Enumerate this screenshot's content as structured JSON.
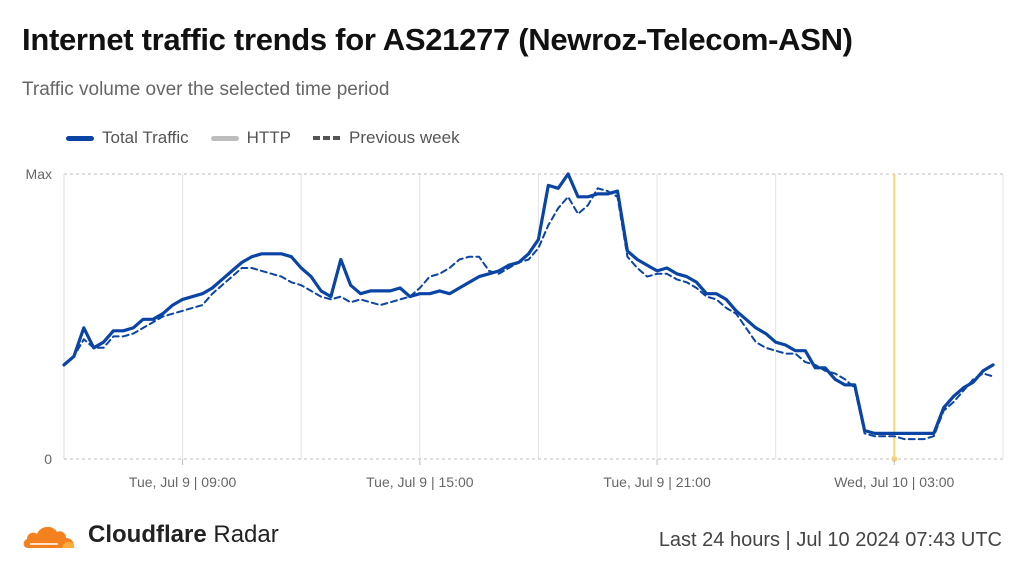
{
  "header": {
    "title": "Internet traffic trends for AS21277 (Newroz-Telecom-ASN)",
    "subtitle": "Traffic volume over the selected time period"
  },
  "legend": {
    "items": [
      {
        "label": "Total Traffic",
        "style": "solid",
        "color": "#0a44a4"
      },
      {
        "label": "HTTP",
        "style": "solid",
        "color": "#bdbdbd"
      },
      {
        "label": "Previous week",
        "style": "dashed",
        "color": "#555555"
      }
    ]
  },
  "footer": {
    "brand_bold": "Cloudflare",
    "brand_regular": "Radar",
    "meta": "Last 24 hours | Jul 10 2024 07:43 UTC",
    "logo_color": "#f48120"
  },
  "chart_data": {
    "type": "line",
    "ylim": [
      0,
      100
    ],
    "y_tick_labels": [
      "0",
      "Max"
    ],
    "x_tick_labels": [
      "Tue, Jul 9 | 09:00",
      "Tue, Jul 9 | 15:00",
      "Tue, Jul 9 | 21:00",
      "Wed, Jul 10 | 03:00"
    ],
    "x_tick_hours": [
      3,
      9,
      15,
      21
    ],
    "x_range_hours": [
      0,
      23.75
    ],
    "highlight_hour": 21,
    "highlight_color": "#f5d57a",
    "grid": true,
    "series": [
      {
        "name": "Total Traffic",
        "color": "#0a44a4",
        "dash": false,
        "points": [
          [
            0.0,
            33
          ],
          [
            0.25,
            36
          ],
          [
            0.5,
            46
          ],
          [
            0.75,
            39
          ],
          [
            1.0,
            41
          ],
          [
            1.25,
            45
          ],
          [
            1.5,
            45
          ],
          [
            1.75,
            46
          ],
          [
            2.0,
            49
          ],
          [
            2.25,
            49
          ],
          [
            2.5,
            51
          ],
          [
            2.75,
            54
          ],
          [
            3.0,
            56
          ],
          [
            3.25,
            57
          ],
          [
            3.5,
            58
          ],
          [
            3.75,
            60
          ],
          [
            4.0,
            63
          ],
          [
            4.25,
            66
          ],
          [
            4.5,
            69
          ],
          [
            4.75,
            71
          ],
          [
            5.0,
            72
          ],
          [
            5.25,
            72
          ],
          [
            5.5,
            72
          ],
          [
            5.75,
            71
          ],
          [
            6.0,
            67
          ],
          [
            6.25,
            64
          ],
          [
            6.5,
            59
          ],
          [
            6.75,
            57
          ],
          [
            7.0,
            70
          ],
          [
            7.25,
            61
          ],
          [
            7.5,
            58
          ],
          [
            7.75,
            59
          ],
          [
            8.0,
            59
          ],
          [
            8.25,
            59
          ],
          [
            8.5,
            60
          ],
          [
            8.75,
            57
          ],
          [
            9.0,
            58
          ],
          [
            9.25,
            58
          ],
          [
            9.5,
            59
          ],
          [
            9.75,
            58
          ],
          [
            10.0,
            60
          ],
          [
            10.25,
            62
          ],
          [
            10.5,
            64
          ],
          [
            10.75,
            65
          ],
          [
            11.0,
            66
          ],
          [
            11.25,
            68
          ],
          [
            11.5,
            69
          ],
          [
            11.75,
            72
          ],
          [
            12.0,
            77
          ],
          [
            12.25,
            96
          ],
          [
            12.5,
            95
          ],
          [
            12.75,
            100
          ],
          [
            13.0,
            92
          ],
          [
            13.25,
            92
          ],
          [
            13.5,
            93
          ],
          [
            13.75,
            93
          ],
          [
            14.0,
            94
          ],
          [
            14.25,
            73
          ],
          [
            14.5,
            70
          ],
          [
            14.75,
            68
          ],
          [
            15.0,
            66
          ],
          [
            15.25,
            67
          ],
          [
            15.5,
            65
          ],
          [
            15.75,
            64
          ],
          [
            16.0,
            62
          ],
          [
            16.25,
            58
          ],
          [
            16.5,
            58
          ],
          [
            16.75,
            56
          ],
          [
            17.0,
            52
          ],
          [
            17.25,
            49
          ],
          [
            17.5,
            46
          ],
          [
            17.75,
            44
          ],
          [
            18.0,
            41
          ],
          [
            18.25,
            40
          ],
          [
            18.5,
            38
          ],
          [
            18.75,
            38
          ],
          [
            19.0,
            32
          ],
          [
            19.25,
            32
          ],
          [
            19.5,
            28
          ],
          [
            19.75,
            26
          ],
          [
            20.0,
            26
          ],
          [
            20.25,
            10
          ],
          [
            20.5,
            9
          ],
          [
            20.75,
            9
          ],
          [
            21.0,
            9
          ],
          [
            21.25,
            9
          ],
          [
            21.5,
            9
          ],
          [
            21.75,
            9
          ],
          [
            22.0,
            9
          ],
          [
            22.25,
            18
          ],
          [
            22.5,
            22
          ],
          [
            22.75,
            25
          ],
          [
            23.0,
            27
          ],
          [
            23.25,
            31
          ],
          [
            23.5,
            33
          ]
        ]
      },
      {
        "name": "Previous week",
        "color": "#0a44a4",
        "dash": true,
        "points": [
          [
            0.0,
            33
          ],
          [
            0.25,
            36
          ],
          [
            0.5,
            42
          ],
          [
            0.75,
            39
          ],
          [
            1.0,
            39
          ],
          [
            1.25,
            43
          ],
          [
            1.5,
            43
          ],
          [
            1.75,
            44
          ],
          [
            2.0,
            46
          ],
          [
            2.25,
            48
          ],
          [
            2.5,
            50
          ],
          [
            2.75,
            51
          ],
          [
            3.0,
            52
          ],
          [
            3.25,
            53
          ],
          [
            3.5,
            54
          ],
          [
            3.75,
            58
          ],
          [
            4.0,
            61
          ],
          [
            4.25,
            64
          ],
          [
            4.5,
            67
          ],
          [
            4.75,
            67
          ],
          [
            5.0,
            66
          ],
          [
            5.25,
            65
          ],
          [
            5.5,
            64
          ],
          [
            5.75,
            62
          ],
          [
            6.0,
            61
          ],
          [
            6.25,
            59
          ],
          [
            6.5,
            57
          ],
          [
            6.75,
            56
          ],
          [
            7.0,
            57
          ],
          [
            7.25,
            55
          ],
          [
            7.5,
            56
          ],
          [
            7.75,
            55
          ],
          [
            8.0,
            54
          ],
          [
            8.25,
            55
          ],
          [
            8.5,
            56
          ],
          [
            8.75,
            57
          ],
          [
            9.0,
            60
          ],
          [
            9.25,
            64
          ],
          [
            9.5,
            65
          ],
          [
            9.75,
            67
          ],
          [
            10.0,
            70
          ],
          [
            10.25,
            71
          ],
          [
            10.5,
            71
          ],
          [
            10.75,
            66
          ],
          [
            11.0,
            65
          ],
          [
            11.25,
            67
          ],
          [
            11.5,
            69
          ],
          [
            11.75,
            70
          ],
          [
            12.0,
            74
          ],
          [
            12.25,
            82
          ],
          [
            12.5,
            88
          ],
          [
            12.75,
            92
          ],
          [
            13.0,
            86
          ],
          [
            13.25,
            89
          ],
          [
            13.5,
            95
          ],
          [
            13.75,
            94
          ],
          [
            14.0,
            92
          ],
          [
            14.25,
            71
          ],
          [
            14.5,
            67
          ],
          [
            14.75,
            64
          ],
          [
            15.0,
            65
          ],
          [
            15.25,
            65
          ],
          [
            15.5,
            63
          ],
          [
            15.75,
            62
          ],
          [
            16.0,
            60
          ],
          [
            16.25,
            57
          ],
          [
            16.5,
            56
          ],
          [
            16.75,
            53
          ],
          [
            17.0,
            51
          ],
          [
            17.25,
            46
          ],
          [
            17.5,
            41
          ],
          [
            17.75,
            39
          ],
          [
            18.0,
            38
          ],
          [
            18.25,
            37
          ],
          [
            18.5,
            37
          ],
          [
            18.75,
            34
          ],
          [
            19.0,
            33
          ],
          [
            19.25,
            31
          ],
          [
            19.5,
            30
          ],
          [
            19.75,
            28
          ],
          [
            20.0,
            25
          ],
          [
            20.25,
            9
          ],
          [
            20.5,
            8
          ],
          [
            20.75,
            8
          ],
          [
            21.0,
            8
          ],
          [
            21.25,
            7
          ],
          [
            21.5,
            7
          ],
          [
            21.75,
            7
          ],
          [
            22.0,
            8
          ],
          [
            22.25,
            17
          ],
          [
            22.5,
            20
          ],
          [
            22.75,
            24
          ],
          [
            23.0,
            28
          ],
          [
            23.25,
            30
          ],
          [
            23.5,
            29
          ]
        ]
      }
    ]
  }
}
